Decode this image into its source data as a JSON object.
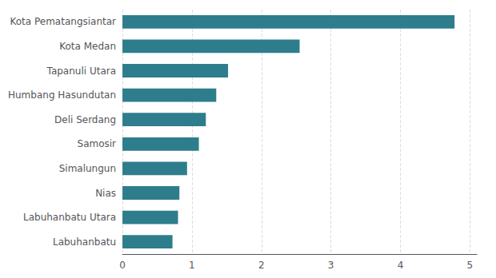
{
  "chart_data": {
    "type": "bar",
    "orientation": "horizontal",
    "categories": [
      "Labuhanbatu",
      "Labuhanbatu Utara",
      "Nias",
      "Simalungun",
      "Samosir",
      "Deli Serdang",
      "Humbang Hasundutan",
      "Tapanuli Utara",
      "Kota Medan",
      "Kota Pematangsiantar"
    ],
    "values": [
      0.72,
      0.8,
      0.82,
      0.93,
      1.1,
      1.2,
      1.35,
      1.52,
      2.55,
      4.78
    ],
    "color": "#2e7d8c",
    "xlim": [
      0,
      5.1
    ],
    "xticks": [
      0,
      1,
      2,
      3,
      4,
      5
    ],
    "grid": true
  }
}
